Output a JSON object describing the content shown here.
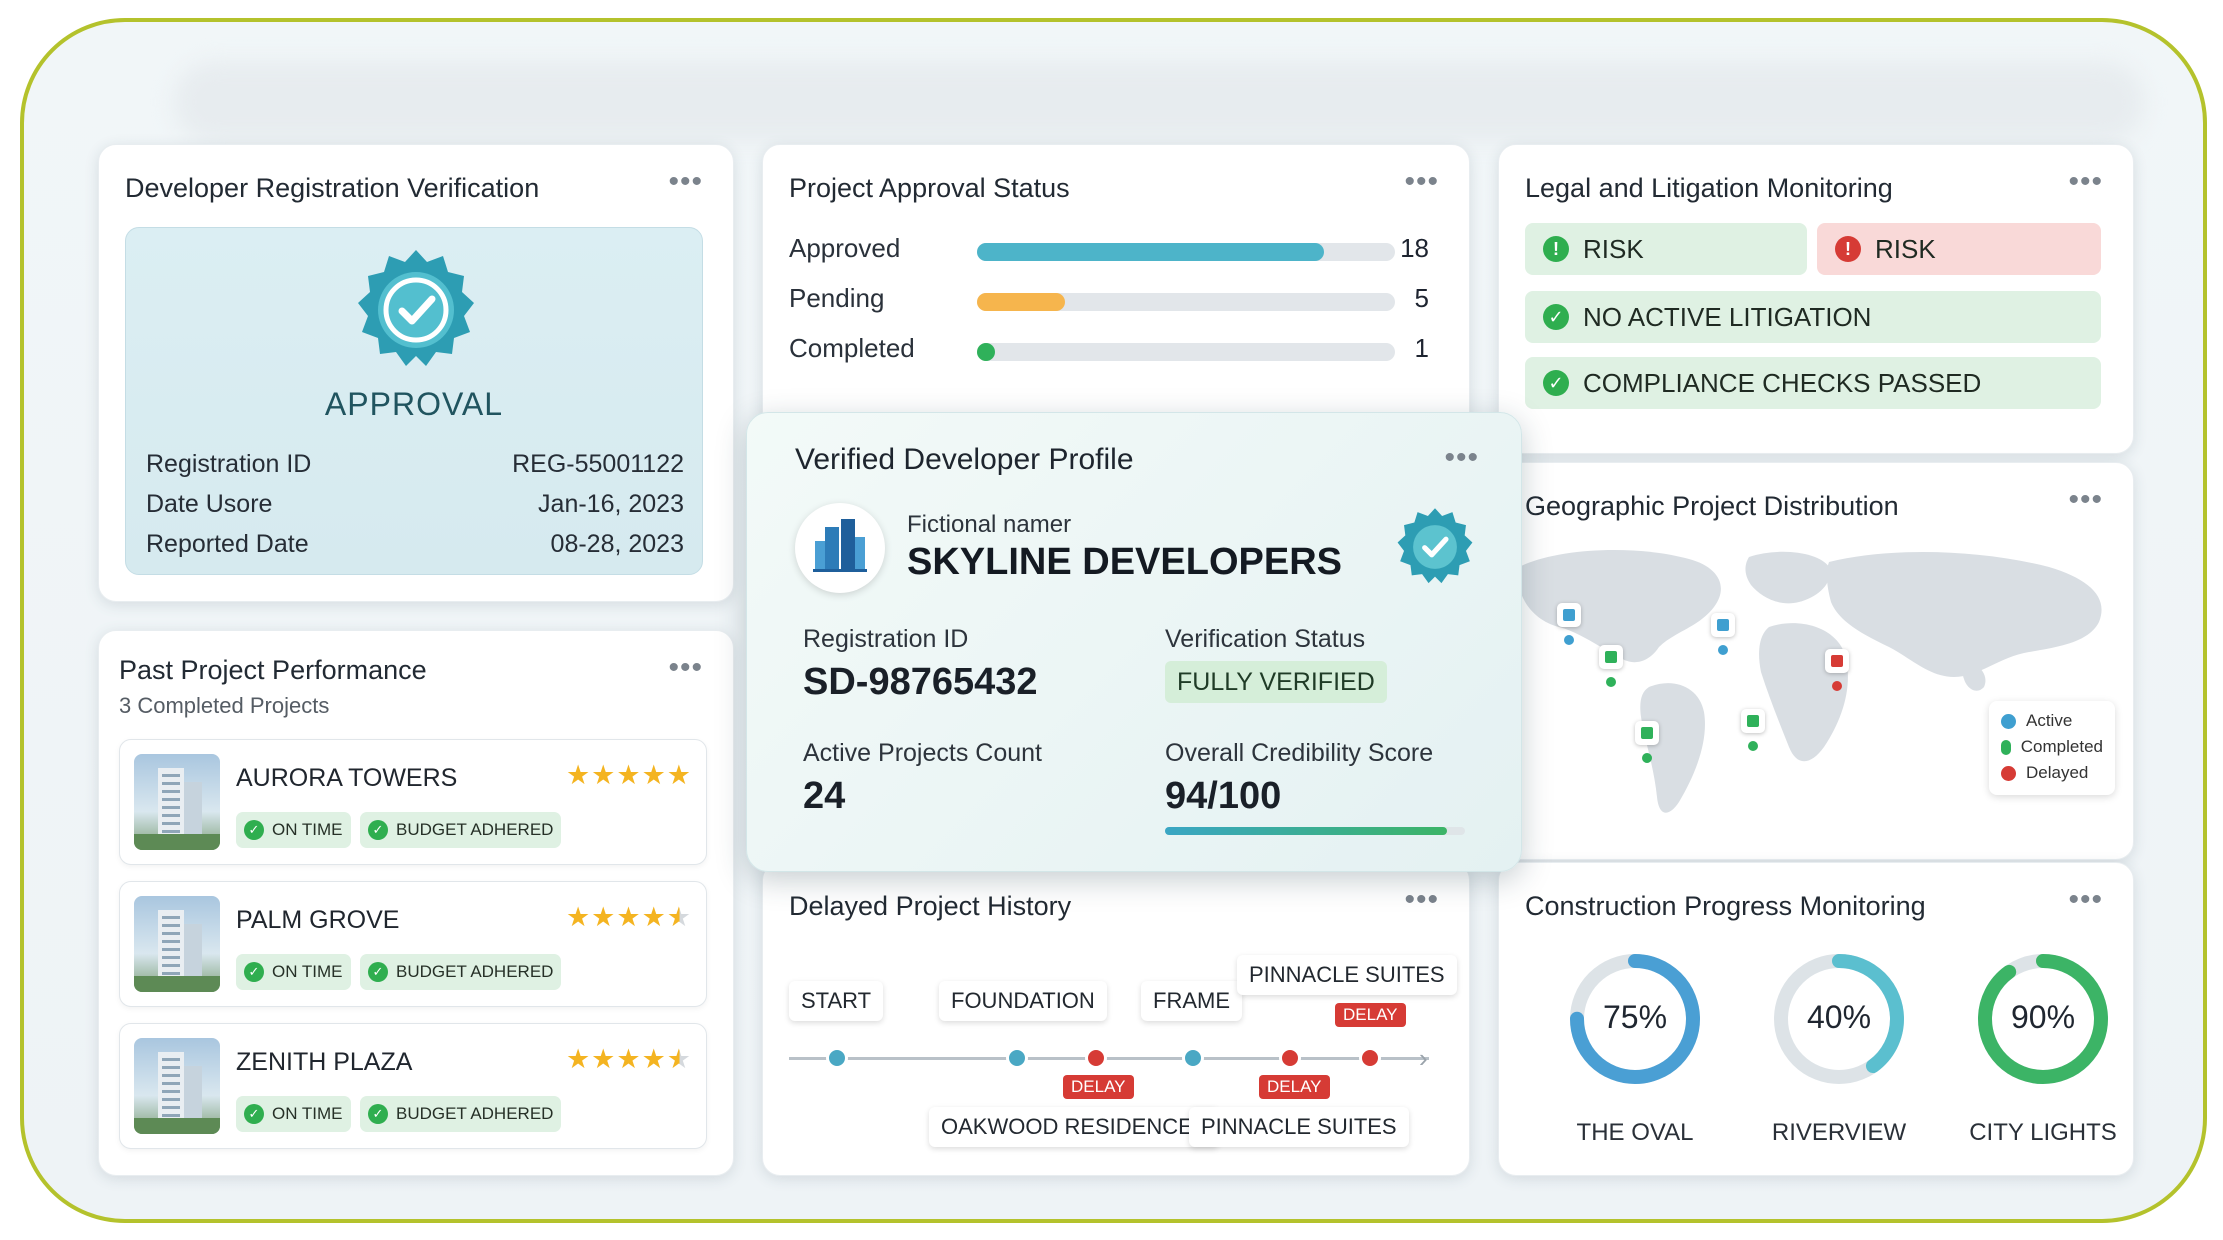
{
  "registration": {
    "title": "Developer Registration Verification",
    "badge_label": "APPROVAL",
    "rows": [
      {
        "label": "Registration ID",
        "value": "REG-55001122"
      },
      {
        "label": "Date Usore",
        "value": "Jan-16, 2023"
      },
      {
        "label": "Reported Date",
        "value": "08-28, 2023"
      }
    ]
  },
  "approval_status": {
    "title": "Project Approval Status",
    "items": [
      {
        "label": "Approved",
        "count": "18",
        "fill": 0.83,
        "color": "#4db4c9"
      },
      {
        "label": "Pending",
        "count": "5",
        "fill": 0.21,
        "color": "#f6b54d"
      },
      {
        "label": "Completed",
        "count": "1",
        "fill": 0.05,
        "color": "#2fb15a"
      }
    ]
  },
  "legal": {
    "title": "Legal and Litigation Monitoring",
    "risk_green": "RISK",
    "risk_red": "RISK",
    "litigation": "NO ACTIVE LITIGATION",
    "compliance": "COMPLIANCE CHECKS PASSED"
  },
  "past_projects": {
    "title": "Past Project Performance",
    "subtitle": "3 Completed Projects",
    "on_time": "ON TIME",
    "budget": "BUDGET ADHERED",
    "items": [
      {
        "name": "AURORA TOWERS",
        "rating": 5
      },
      {
        "name": "PALM GROVE",
        "rating": 4.5
      },
      {
        "name": "ZENITH PLAZA",
        "rating": 4.5
      }
    ]
  },
  "profile": {
    "title": "Verified Developer Profile",
    "subtitle": "Fictional namer",
    "name": "SKYLINE DEVELOPERS",
    "reg_label": "Registration ID",
    "reg_value": "SD-98765432",
    "status_label": "Verification Status",
    "status_value": "FULLY VERIFIED",
    "active_label": "Active Projects Count",
    "active_value": "24",
    "score_label": "Overall Credibility Score",
    "score_value": "94/100",
    "score_fraction": 0.94
  },
  "geo": {
    "title": "Geographic Project Distribution",
    "legend": {
      "active": "Active",
      "completed": "Completed",
      "delayed": "Delayed"
    },
    "colors": {
      "active": "#3f9fd0",
      "completed": "#2fb15a",
      "delayed": "#d63b35"
    }
  },
  "delayed_history": {
    "title": "Delayed Project History",
    "start": "START",
    "foundation": "FOUNDATION",
    "frame": "FRAME",
    "pinnacle_top": "PINNACLE SUITES",
    "oakwood": "OAKWOOD RESIDENCES",
    "pinnacle_bottom": "PINNACLE SUITES",
    "delay": "DELAY"
  },
  "construction": {
    "title": "Construction Progress Monitoring",
    "items": [
      {
        "name": "THE OVAL",
        "value": "75%",
        "fraction": 0.75,
        "color": "#4a9fd4"
      },
      {
        "name": "RIVERVIEW",
        "value": "40%",
        "fraction": 0.4,
        "color": "#5bbfcf"
      },
      {
        "name": "CITY LIGHTS",
        "value": "90%",
        "fraction": 0.9,
        "color": "#3cb466"
      }
    ]
  }
}
